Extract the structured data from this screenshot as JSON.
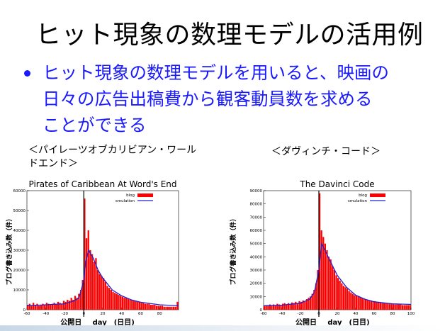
{
  "slide": {
    "title": "ヒット現象の数理モデルの活用例",
    "bullet_lines": [
      "ヒット現象の数理モデルを用いると、映画の",
      "日々の広告出稿費から観客動員数を求める",
      "ことができる"
    ],
    "caption_left": "＜パイレーツオブカリビアン・ワールドエンド＞",
    "caption_right": "＜ダヴィンチ・コード＞",
    "colors": {
      "text": "#000000",
      "bullet": "#1a1aff",
      "bars": "#ff0000",
      "line": "#2222cc"
    }
  },
  "chart_data": [
    {
      "type": "bar",
      "title": "Pirates of Caribbean At Word's End",
      "ylabel": "ブログ書き込み数（件）",
      "xlabel_left": "公開日",
      "xlabel": "day　(日目)",
      "legend": [
        "blog",
        "smulation"
      ],
      "legend_position": "top-right",
      "xlim": [
        -60,
        100
      ],
      "ylim": [
        0,
        60000
      ],
      "xticks": [
        -60,
        -40,
        -20,
        0,
        20,
        40,
        60,
        80
      ],
      "yticks": [
        0,
        10000,
        20000,
        30000,
        40000,
        50000,
        60000
      ],
      "release_day": 0,
      "series": [
        {
          "name": "blog",
          "kind": "bar",
          "x": [
            -60,
            -58,
            -56,
            -54,
            -52,
            -50,
            -48,
            -46,
            -44,
            -42,
            -40,
            -38,
            -36,
            -34,
            -32,
            -30,
            -28,
            -26,
            -24,
            -22,
            -20,
            -18,
            -16,
            -14,
            -12,
            -10,
            -8,
            -6,
            -4,
            -2,
            0,
            2,
            4,
            6,
            8,
            10,
            12,
            14,
            16,
            18,
            20,
            22,
            24,
            26,
            28,
            30,
            32,
            34,
            36,
            38,
            40,
            42,
            44,
            46,
            48,
            50,
            52,
            54,
            56,
            58,
            60,
            62,
            64,
            66,
            68,
            70,
            72,
            74,
            76,
            78,
            80,
            82,
            84,
            86,
            88,
            90,
            92,
            94,
            96,
            98
          ],
          "values": [
            2500,
            3000,
            2000,
            3500,
            2500,
            3000,
            2000,
            2500,
            3000,
            2500,
            3500,
            3000,
            2500,
            3000,
            3500,
            3000,
            4000,
            3500,
            3000,
            4500,
            4000,
            5000,
            4500,
            6000,
            5000,
            7000,
            6000,
            8000,
            10000,
            15000,
            56000,
            36000,
            40000,
            30000,
            28000,
            24000,
            26000,
            20000,
            18000,
            17000,
            16000,
            14000,
            12000,
            11000,
            10000,
            9000,
            8500,
            8000,
            7500,
            7000,
            6500,
            6000,
            6000,
            5500,
            5000,
            5000,
            4500,
            4500,
            4000,
            4000,
            3500,
            3500,
            3000,
            3000,
            3000,
            2500,
            2500,
            2500,
            2000,
            2000,
            2000,
            2000,
            1500,
            1500,
            1500,
            1500,
            1500,
            1500,
            1500,
            4000
          ]
        },
        {
          "name": "smulation",
          "kind": "line",
          "x": [
            -60,
            -40,
            -20,
            -10,
            -5,
            0,
            2,
            5,
            10,
            15,
            20,
            30,
            40,
            50,
            60,
            80,
            100
          ],
          "values": [
            2000,
            2500,
            3000,
            4500,
            6000,
            15000,
            24000,
            30000,
            26000,
            20000,
            16000,
            10000,
            7000,
            5000,
            3800,
            2500,
            2000
          ]
        }
      ]
    },
    {
      "type": "bar",
      "title": "The Davinci Code",
      "ylabel": "ブログ書き込み数（件）",
      "xlabel_left": "公開日",
      "xlabel": "day　(日目)",
      "legend": [
        "blog",
        "smulation"
      ],
      "legend_position": "top-right",
      "xlim": [
        -60,
        100
      ],
      "ylim": [
        0,
        90000
      ],
      "xticks": [
        -60,
        -40,
        -20,
        0,
        20,
        40,
        60,
        80,
        100
      ],
      "yticks": [
        0,
        10000,
        20000,
        30000,
        40000,
        50000,
        60000,
        70000,
        80000,
        90000
      ],
      "release_day": 0,
      "series": [
        {
          "name": "blog",
          "kind": "bar",
          "x": [
            -60,
            -58,
            -56,
            -54,
            -52,
            -50,
            -48,
            -46,
            -44,
            -42,
            -40,
            -38,
            -36,
            -34,
            -32,
            -30,
            -28,
            -26,
            -24,
            -22,
            -20,
            -18,
            -16,
            -14,
            -12,
            -10,
            -8,
            -6,
            -4,
            -2,
            0,
            2,
            4,
            6,
            8,
            10,
            12,
            14,
            16,
            18,
            20,
            22,
            24,
            26,
            28,
            30,
            32,
            34,
            36,
            38,
            40,
            42,
            44,
            46,
            48,
            50,
            52,
            54,
            56,
            58,
            60,
            62,
            64,
            66,
            68,
            70,
            72,
            74,
            76,
            78,
            80,
            82,
            84,
            86,
            88,
            90,
            92,
            94,
            96,
            98
          ],
          "values": [
            3000,
            3500,
            3000,
            4000,
            3500,
            4000,
            3000,
            4500,
            4000,
            3500,
            4500,
            5000,
            4000,
            5000,
            4500,
            5500,
            5000,
            6000,
            5000,
            6500,
            6000,
            7000,
            6500,
            8000,
            9000,
            10000,
            12000,
            15000,
            20000,
            30000,
            88000,
            60000,
            55000,
            50000,
            45000,
            40000,
            38000,
            33000,
            30000,
            26000,
            24000,
            22000,
            20000,
            18000,
            17000,
            16000,
            14000,
            13000,
            12000,
            11000,
            10500,
            10000,
            9500,
            9000,
            8500,
            8000,
            7500,
            7000,
            7000,
            6500,
            6500,
            6000,
            6000,
            5500,
            5500,
            5000,
            5000,
            5000,
            4500,
            4500,
            4500,
            4000,
            4000,
            4000,
            4000,
            3500,
            3500,
            3500,
            3500,
            3500
          ]
        },
        {
          "name": "smulation",
          "kind": "line",
          "x": [
            -60,
            -40,
            -20,
            -10,
            -5,
            0,
            3,
            10,
            20,
            30,
            40,
            50,
            60,
            80,
            100
          ],
          "values": [
            3000,
            3500,
            5000,
            8000,
            13000,
            30000,
            50000,
            40000,
            26000,
            17000,
            11000,
            8000,
            6000,
            4500,
            4000
          ]
        }
      ]
    }
  ]
}
